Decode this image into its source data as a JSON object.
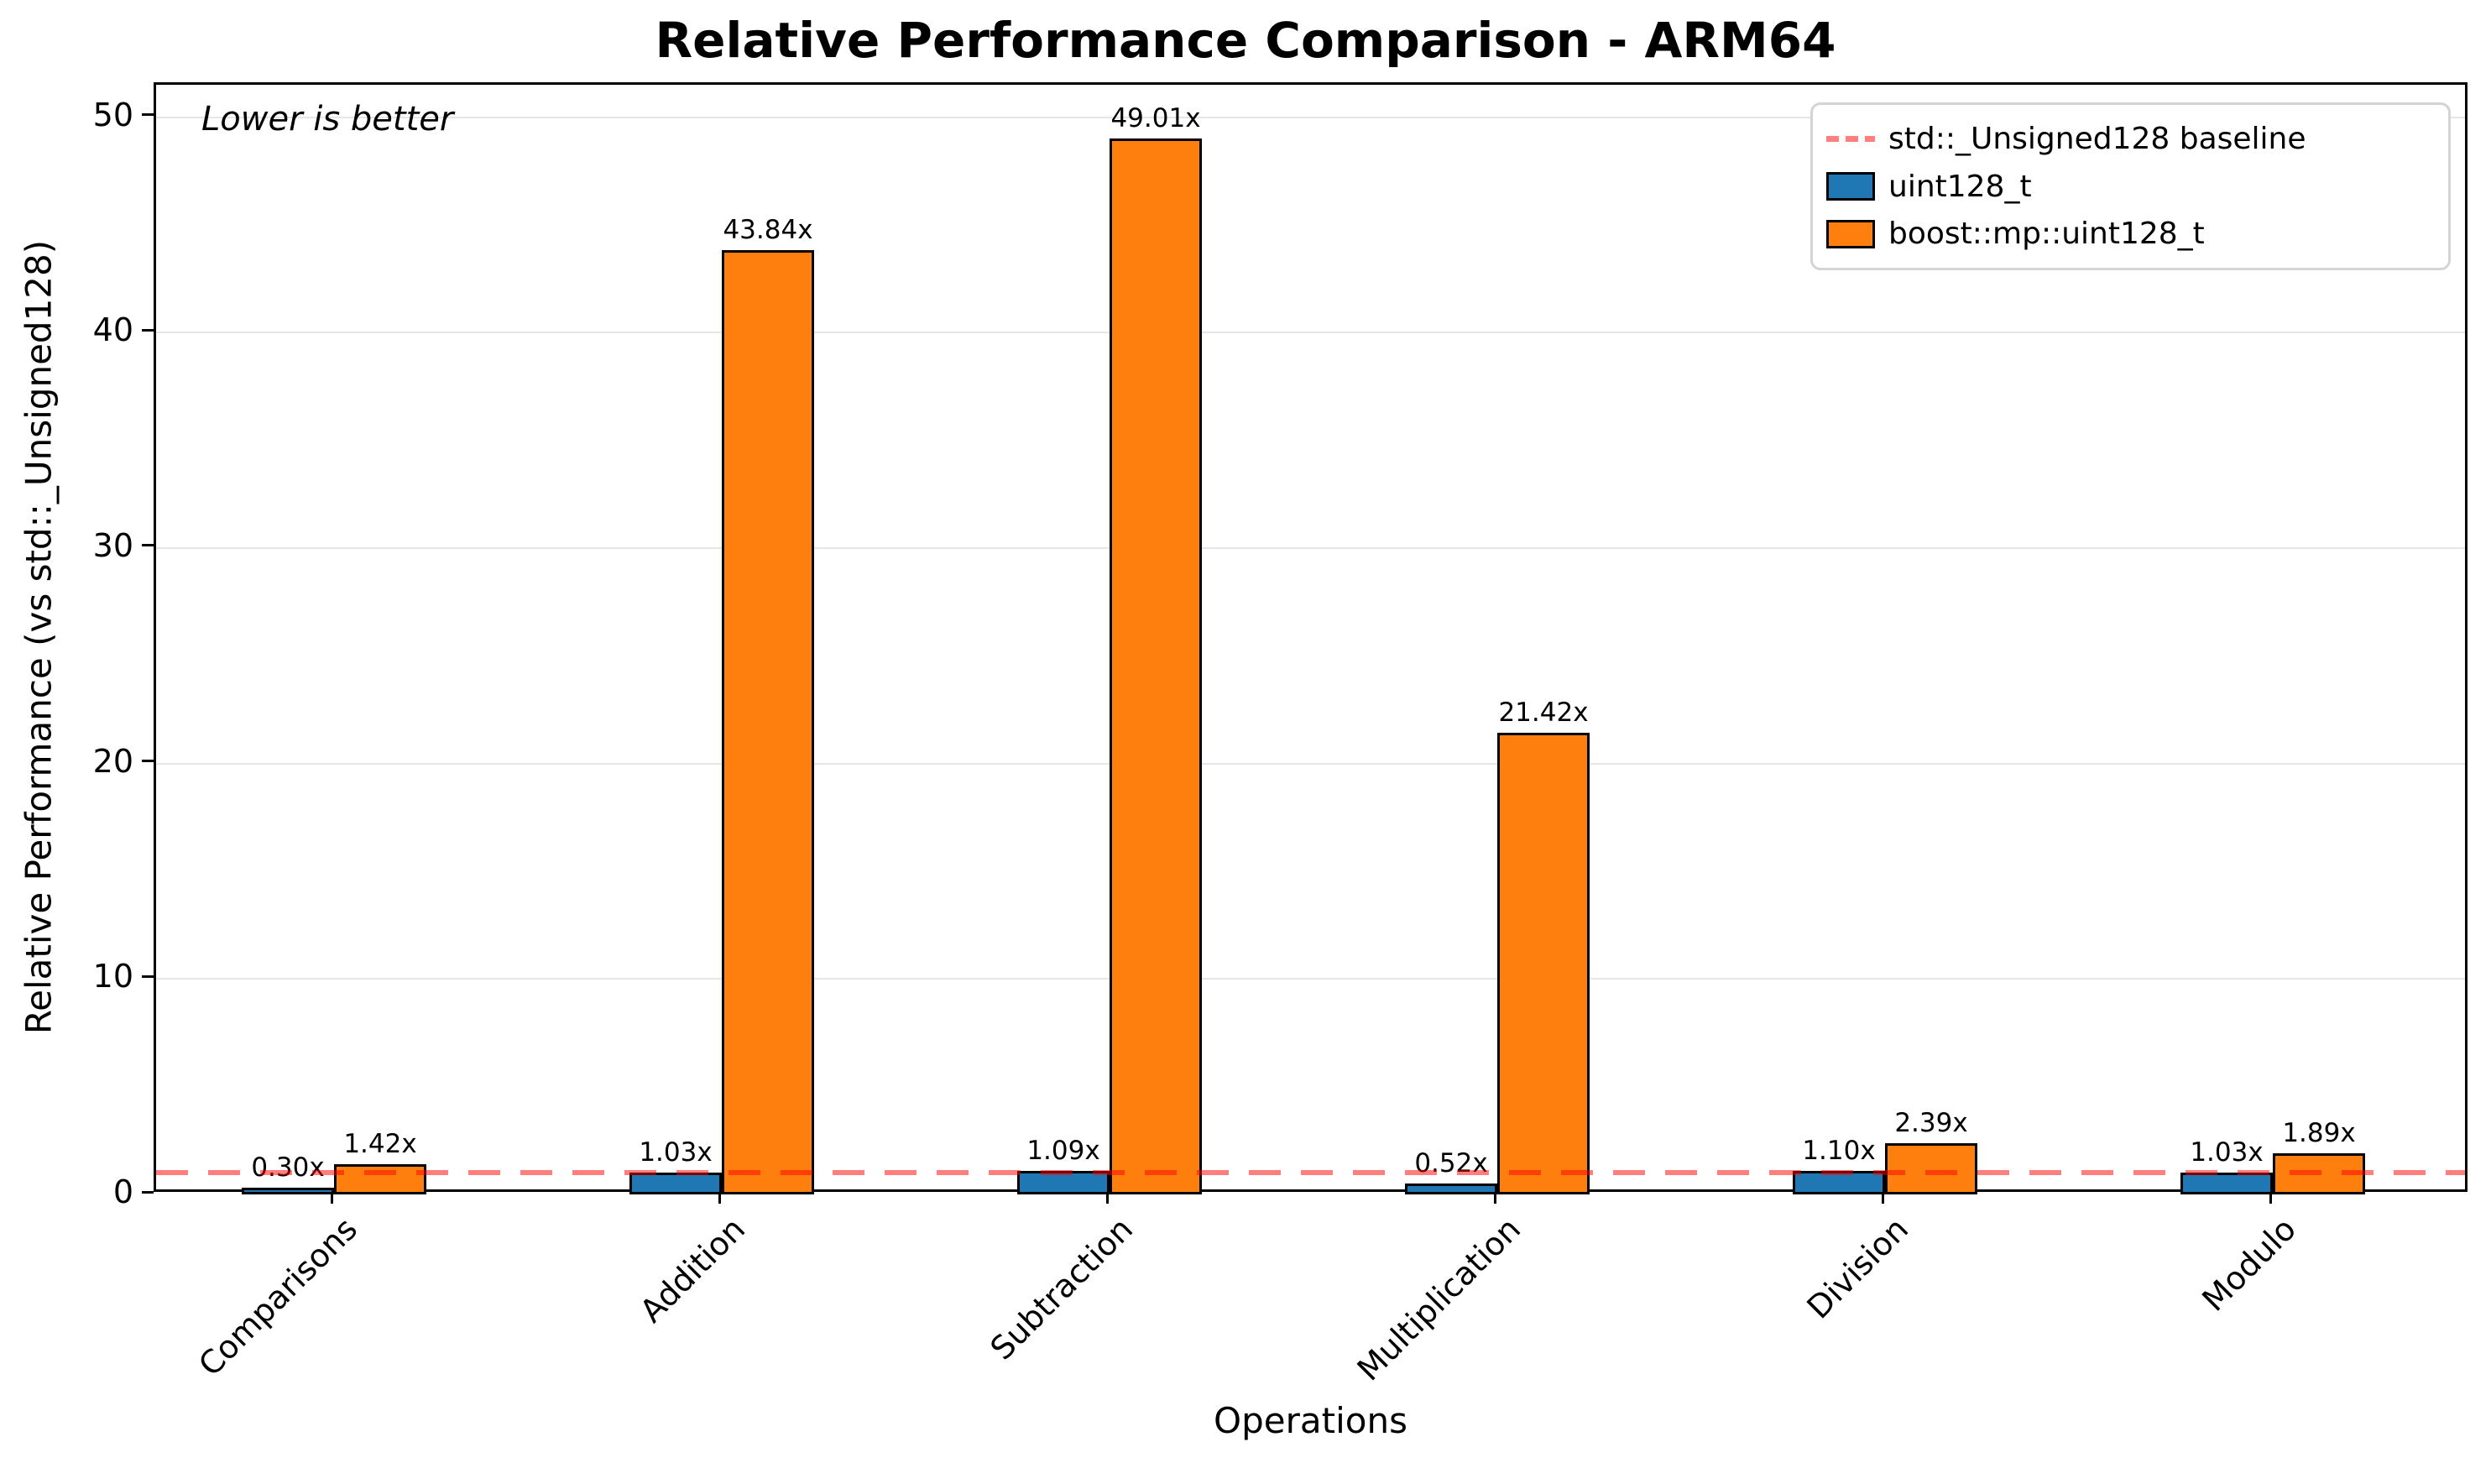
{
  "figure": {
    "title": "Relative Performance Comparison - ARM64",
    "annotation": "Lower is better",
    "xlabel": "Operations",
    "ylabel": "Relative Performance (vs std::_Unsigned128)"
  },
  "legend": {
    "items": [
      {
        "label": "std::_Unsigned128 baseline",
        "type": "dashed-line",
        "color": "#ff8080"
      },
      {
        "label": "uint128_t",
        "type": "patch",
        "color": "#1f77b4"
      },
      {
        "label": "boost::mp::uint128_t",
        "type": "patch",
        "color": "#ff7f0e"
      }
    ]
  },
  "colors": {
    "series_blue": "#1f77b4",
    "series_orange": "#ff7f0e",
    "baseline_red": "rgba(255,0,0,0.5)",
    "grid": "#e6e6e6",
    "spine": "#000000"
  },
  "chart_data": {
    "type": "bar",
    "title": "Relative Performance Comparison - ARM64",
    "xlabel": "Operations",
    "ylabel": "Relative Performance (vs std::_Unsigned128)",
    "categories": [
      "Comparisons",
      "Addition",
      "Subtraction",
      "Multiplication",
      "Division",
      "Modulo"
    ],
    "series": [
      {
        "name": "uint128_t",
        "color": "#1f77b4",
        "values": [
          0.3,
          1.03,
          1.09,
          0.52,
          1.1,
          1.03
        ],
        "value_labels": [
          "0.30x",
          "1.03x",
          "1.09x",
          "0.52x",
          "1.10x",
          "1.03x"
        ]
      },
      {
        "name": "boost::mp::uint128_t",
        "color": "#ff7f0e",
        "values": [
          1.42,
          43.84,
          49.01,
          21.42,
          2.39,
          1.89
        ],
        "value_labels": [
          "1.42x",
          "43.84x",
          "49.01x",
          "21.42x",
          "2.39x",
          "1.89x"
        ]
      }
    ],
    "baseline": {
      "value": 1.0,
      "label": "std::_Unsigned128 baseline",
      "style": "dashed",
      "color": "red"
    },
    "ylim": [
      0,
      51.5
    ],
    "yticks": [
      "0",
      "10",
      "20",
      "30",
      "40",
      "50"
    ],
    "grid": true,
    "legend_position": "upper right",
    "annotation": "Lower is better"
  }
}
